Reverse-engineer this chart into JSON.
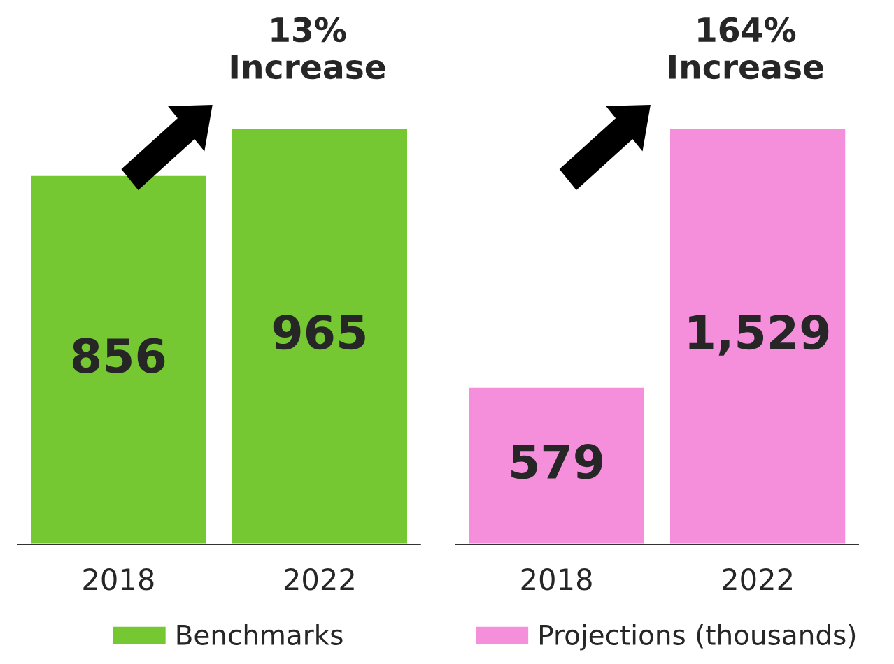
{
  "chart_data": [
    {
      "type": "bar",
      "categories": [
        "2018",
        "2022"
      ],
      "series": [
        {
          "name": "Benchmarks",
          "color": "#76c832",
          "values": [
            856,
            965
          ]
        }
      ],
      "data_labels": true,
      "tick_labels": "x",
      "legend": "bottom",
      "annotations": [
        "13%\nIncrease"
      ]
    },
    {
      "type": "bar",
      "categories": [
        "2018",
        "2022"
      ],
      "series": [
        {
          "name": "Projections (thousands)",
          "color": "#f58fdc",
          "values": [
            579,
            1529
          ],
          "value_labels": [
            "579",
            "1,529"
          ]
        }
      ],
      "tick_labels": "x",
      "legend": "bottom",
      "annotations": [
        "164%\nIncrease"
      ]
    }
  ]
}
